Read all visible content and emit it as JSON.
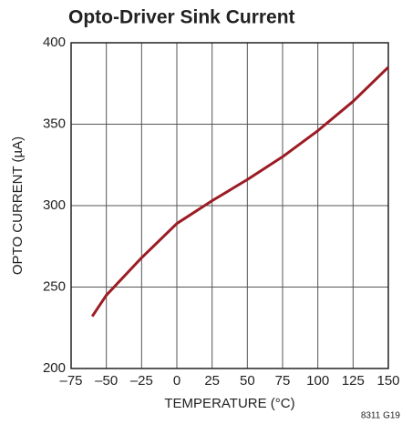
{
  "chart_data": {
    "type": "line",
    "title": "Opto-Driver Sink Current",
    "x_label": "TEMPERATURE (°C)",
    "y_label": "OPTO CURRENT (µA)",
    "annotation": "8311 G19",
    "x": [
      -60,
      -50,
      -25,
      0,
      25,
      50,
      75,
      100,
      125,
      150
    ],
    "series": [
      {
        "name": "Opto current",
        "color": "#9b1c24",
        "values": [
          232,
          245,
          268,
          289,
          303,
          316,
          330,
          346,
          364,
          385
        ]
      }
    ],
    "xlim": [
      -75,
      150
    ],
    "xticks": [
      {
        "value": -75,
        "label": "–75"
      },
      {
        "value": -50,
        "label": "–50"
      },
      {
        "value": -25,
        "label": "–25"
      },
      0,
      25,
      50,
      75,
      100,
      125,
      150
    ],
    "ylim": [
      200,
      400
    ],
    "yticks": [
      200,
      250,
      300,
      350,
      400
    ],
    "grid": true
  }
}
